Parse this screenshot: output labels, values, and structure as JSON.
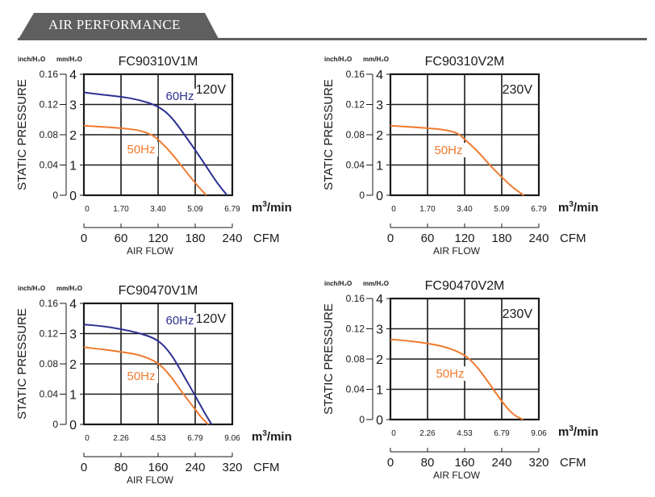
{
  "header": {
    "title": "AIR PERFORMANCE"
  },
  "colors": {
    "curve_60hz": "#2d3192",
    "curve_50hz": "#f07a2e",
    "frame": "#1a1a1a",
    "header": "#5f5f5f"
  },
  "chart_data": [
    {
      "type": "line",
      "title": "FC90310V1M",
      "voltage": "120V",
      "ylabel": "STATIC PRESSURE",
      "y_unit_left": "inch/H₂O",
      "y_unit_right": "mm/H₂O",
      "y_ticks_inch": [
        "0",
        "0.04",
        "0.08",
        "0.12",
        "0.16"
      ],
      "y_ticks_mm": [
        "0",
        "1",
        "2",
        "3",
        "4"
      ],
      "ylim": [
        0,
        4
      ],
      "x_ticks_m3": [
        "0",
        "1.70",
        "3.40",
        "5.09",
        "6.79"
      ],
      "x_unit_m3": "m³/min",
      "x_ticks_cfm": [
        "0",
        "60",
        "120",
        "180",
        "240"
      ],
      "x_unit_cfm": "CFM",
      "xlabel": "AIR FLOW",
      "xlim": [
        0,
        6.79
      ],
      "series": [
        {
          "name": "60Hz",
          "x": [
            0,
            0.85,
            1.7,
            2.55,
            3.4,
            4.0,
            4.6,
            5.09,
            5.6,
            6.1,
            6.55
          ],
          "y": [
            3.4,
            3.32,
            3.26,
            3.15,
            2.95,
            2.6,
            2.0,
            1.5,
            0.95,
            0.4,
            0
          ]
        },
        {
          "name": "50Hz",
          "x": [
            0,
            0.85,
            1.7,
            2.55,
            3.1,
            3.4,
            4.0,
            4.6,
            5.09,
            5.6
          ],
          "y": [
            2.3,
            2.26,
            2.22,
            2.15,
            2.0,
            1.85,
            1.4,
            0.85,
            0.4,
            0
          ]
        }
      ]
    },
    {
      "type": "line",
      "title": "FC90310V2M",
      "voltage": "230V",
      "ylabel": "STATIC PRESSURE",
      "y_unit_left": "inch/H₂O",
      "y_unit_right": "mm/H₂O",
      "y_ticks_inch": [
        "0",
        "0.04",
        "0.08",
        "0.12",
        "0.16"
      ],
      "y_ticks_mm": [
        "0",
        "1",
        "2",
        "3",
        "4"
      ],
      "ylim": [
        0,
        4
      ],
      "x_ticks_m3": [
        "0",
        "1.70",
        "3.40",
        "5.09",
        "6.79"
      ],
      "x_unit_m3": "m³/min",
      "x_ticks_cfm": [
        "0",
        "60",
        "120",
        "180",
        "240"
      ],
      "x_unit_cfm": "CFM",
      "xlabel": "AIR FLOW",
      "xlim": [
        0,
        6.79
      ],
      "series": [
        {
          "name": "50Hz",
          "x": [
            0,
            0.85,
            1.7,
            2.55,
            3.1,
            3.4,
            4.0,
            4.6,
            5.09,
            5.6,
            6.1
          ],
          "y": [
            2.3,
            2.26,
            2.22,
            2.16,
            2.05,
            1.85,
            1.45,
            0.95,
            0.6,
            0.25,
            0
          ]
        }
      ]
    },
    {
      "type": "line",
      "title": "FC90470V1M",
      "voltage": "120V",
      "ylabel": "STATIC PRESSURE",
      "y_unit_left": "inch/H₂O",
      "y_unit_right": "mm/H₂O",
      "y_ticks_inch": [
        "0",
        "0.04",
        "0.08",
        "0.12",
        "0.16"
      ],
      "y_ticks_mm": [
        "0",
        "1",
        "2",
        "3",
        "4"
      ],
      "ylim": [
        0,
        4
      ],
      "x_ticks_m3": [
        "0",
        "2.26",
        "4.53",
        "6.79",
        "9.06"
      ],
      "x_unit_m3": "m³/min",
      "x_ticks_cfm": [
        "0",
        "80",
        "160",
        "240",
        "320"
      ],
      "x_unit_cfm": "CFM",
      "xlabel": "AIR FLOW",
      "xlim": [
        0,
        9.06
      ],
      "series": [
        {
          "name": "60Hz",
          "x": [
            0,
            1.13,
            2.26,
            3.4,
            4.53,
            5.3,
            6.0,
            6.79,
            7.4,
            7.8
          ],
          "y": [
            3.3,
            3.25,
            3.15,
            3.02,
            2.8,
            2.35,
            1.7,
            0.95,
            0.35,
            0
          ]
        },
        {
          "name": "50Hz",
          "x": [
            0,
            1.13,
            2.26,
            3.4,
            4.53,
            5.3,
            6.0,
            6.79,
            7.2,
            7.6
          ],
          "y": [
            2.55,
            2.48,
            2.4,
            2.3,
            2.05,
            1.6,
            1.05,
            0.5,
            0.2,
            0
          ]
        }
      ]
    },
    {
      "type": "line",
      "title": "FC90470V2M",
      "voltage": "230V",
      "ylabel": "STATIC PRESSURE",
      "y_unit_left": "inch/H₂O",
      "y_unit_right": "mm/H₂O",
      "y_ticks_inch": [
        "0",
        "0.04",
        "0.08",
        "0.12",
        "0.16"
      ],
      "y_ticks_mm": [
        "0",
        "1",
        "2",
        "3",
        "4"
      ],
      "ylim": [
        0,
        4
      ],
      "x_ticks_m3": [
        "0",
        "2.26",
        "4.53",
        "6.79",
        "9.06"
      ],
      "x_unit_m3": "m³/min",
      "x_ticks_cfm": [
        "0",
        "80",
        "160",
        "240",
        "320"
      ],
      "x_unit_cfm": "CFM",
      "xlabel": "AIR FLOW",
      "xlim": [
        0,
        9.06
      ],
      "series": [
        {
          "name": "50Hz",
          "x": [
            0,
            1.13,
            2.26,
            3.4,
            4.53,
            5.2,
            5.9,
            6.79,
            7.5,
            8.1
          ],
          "y": [
            2.65,
            2.6,
            2.52,
            2.4,
            2.15,
            1.8,
            1.3,
            0.6,
            0.15,
            0
          ]
        }
      ]
    }
  ]
}
